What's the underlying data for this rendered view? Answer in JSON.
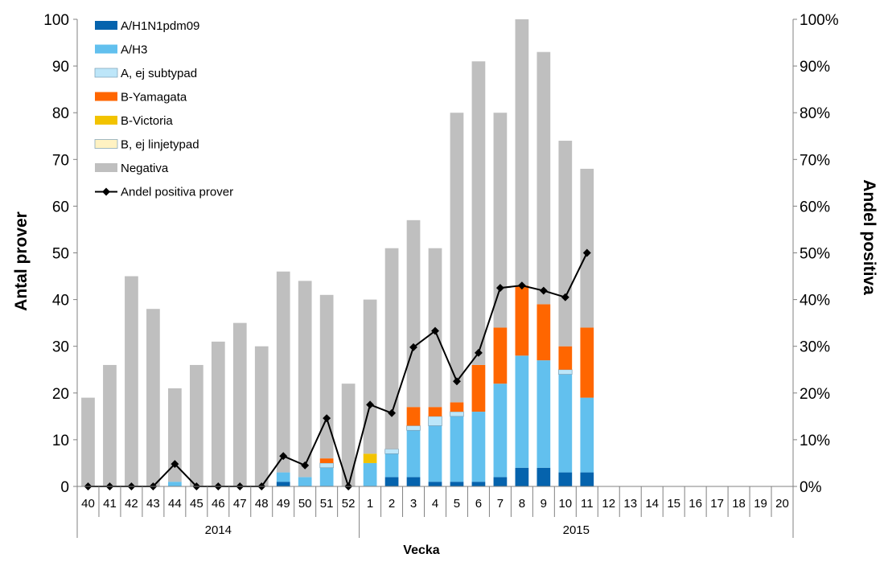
{
  "chart_data": {
    "type": "bar",
    "stacked": true,
    "categories": [
      "40",
      "41",
      "42",
      "43",
      "44",
      "45",
      "46",
      "47",
      "48",
      "49",
      "50",
      "51",
      "52",
      "1",
      "2",
      "3",
      "4",
      "5",
      "6",
      "7",
      "8",
      "9",
      "10",
      "11",
      "12",
      "13",
      "14",
      "15",
      "16",
      "17",
      "18",
      "19",
      "20"
    ],
    "year_groups": [
      {
        "label": "2014",
        "start": 0,
        "end": 12
      },
      {
        "label": "2015",
        "start": 13,
        "end": 32
      }
    ],
    "series": [
      {
        "name": "A/H1N1pdm09",
        "color": "#0563ad",
        "values": [
          0,
          0,
          0,
          0,
          0,
          0,
          0,
          0,
          0,
          1,
          0,
          0,
          0,
          0,
          2,
          2,
          1,
          1,
          1,
          2,
          4,
          4,
          3,
          3,
          null,
          null,
          null,
          null,
          null,
          null,
          null,
          null,
          null
        ]
      },
      {
        "name": "A/H3",
        "color": "#62c0ee",
        "values": [
          0,
          0,
          0,
          0,
          1,
          0,
          0,
          0,
          0,
          2,
          2,
          4,
          0,
          5,
          5,
          10,
          12,
          14,
          15,
          20,
          24,
          23,
          21,
          16,
          null,
          null,
          null,
          null,
          null,
          null,
          null,
          null,
          null
        ]
      },
      {
        "name": "A, ej subtypad",
        "color": "#bde6f9",
        "values": [
          0,
          0,
          0,
          0,
          0,
          0,
          0,
          0,
          0,
          0,
          0,
          1,
          0,
          0,
          1,
          1,
          2,
          1,
          0,
          0,
          0,
          0,
          1,
          0,
          null,
          null,
          null,
          null,
          null,
          null,
          null,
          null,
          null
        ]
      },
      {
        "name": "B-Yamagata",
        "color": "#ff6600",
        "values": [
          0,
          0,
          0,
          0,
          0,
          0,
          0,
          0,
          0,
          0,
          0,
          1,
          0,
          0,
          0,
          4,
          2,
          2,
          10,
          12,
          15,
          12,
          5,
          15,
          null,
          null,
          null,
          null,
          null,
          null,
          null,
          null,
          null
        ]
      },
      {
        "name": "B-Victoria",
        "color": "#f2c300",
        "values": [
          0,
          0,
          0,
          0,
          0,
          0,
          0,
          0,
          0,
          0,
          0,
          0,
          0,
          2,
          0,
          0,
          0,
          0,
          0,
          0,
          0,
          0,
          0,
          0,
          null,
          null,
          null,
          null,
          null,
          null,
          null,
          null,
          null
        ]
      },
      {
        "name": "B, ej linjetypad",
        "color": "#fff2c2",
        "values": [
          0,
          0,
          0,
          0,
          0,
          0,
          0,
          0,
          0,
          0,
          0,
          0,
          0,
          0,
          0,
          0,
          0,
          0,
          0,
          0,
          0,
          0,
          0,
          0,
          null,
          null,
          null,
          null,
          null,
          null,
          null,
          null,
          null
        ]
      },
      {
        "name": "Negativa",
        "color": "#bfbfbf",
        "values": [
          19,
          26,
          45,
          38,
          20,
          26,
          31,
          35,
          30,
          43,
          42,
          35,
          22,
          33,
          43,
          40,
          34,
          62,
          65,
          46,
          57,
          54,
          44,
          34,
          null,
          null,
          null,
          null,
          null,
          null,
          null,
          null,
          null
        ]
      }
    ],
    "line_series": {
      "name": "Andel positiva prover",
      "color": "#000000",
      "axis": "right",
      "values": [
        0,
        0,
        0,
        0,
        4.8,
        0,
        0,
        0,
        0,
        6.5,
        4.5,
        14.6,
        0,
        17.5,
        15.7,
        29.8,
        33.3,
        22.5,
        28.6,
        42.5,
        43,
        41.9,
        40.5,
        50,
        null,
        null,
        null,
        null,
        null,
        null,
        null,
        null,
        null
      ]
    },
    "ylabel": "Antal prover",
    "y2label": "Andel positiva",
    "xlabel": "Vecka",
    "ylim": [
      0,
      100
    ],
    "y2lim": [
      0,
      100
    ],
    "yticks": [
      "0",
      "10",
      "20",
      "30",
      "40",
      "50",
      "60",
      "70",
      "80",
      "90",
      "100"
    ],
    "y2ticks": [
      "0%",
      "10%",
      "20%",
      "30%",
      "40%",
      "50%",
      "60%",
      "70%",
      "80%",
      "90%",
      "100%"
    ],
    "legend_position": "top-left",
    "grid": false
  }
}
